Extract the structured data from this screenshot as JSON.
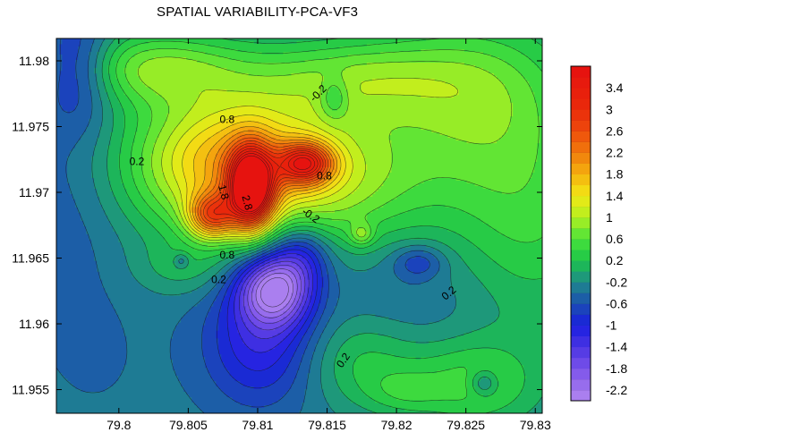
{
  "chart_data": {
    "type": "heatmap",
    "subtype": "filled-contour",
    "title": "SPATIAL VARIABILITY-PCA-VF3",
    "xlabel": "",
    "ylabel": "",
    "xlim": [
      79.7955,
      79.8305
    ],
    "ylim": [
      11.9532,
      11.9817
    ],
    "x_ticks": [
      79.8,
      79.805,
      79.81,
      79.815,
      79.82,
      79.825,
      79.83
    ],
    "x_tick_labels": [
      "79.8",
      "79.805",
      "79.81",
      "79.815",
      "79.82",
      "79.825",
      "79.83"
    ],
    "y_ticks": [
      11.955,
      11.96,
      11.965,
      11.97,
      11.975,
      11.98
    ],
    "y_tick_labels": [
      "11.955",
      "11.96",
      "11.965",
      "11.97",
      "11.975",
      "11.98"
    ],
    "colorbar": {
      "levels": [
        -2.4,
        -2.2,
        -2.0,
        -1.8,
        -1.6,
        -1.4,
        -1.2,
        -1.0,
        -0.8,
        -0.6,
        -0.4,
        -0.2,
        0,
        0.2,
        0.4,
        0.6,
        0.8,
        1.0,
        1.2,
        1.4,
        1.6,
        1.8,
        2.0,
        2.2,
        2.4,
        2.6,
        2.8,
        3.0,
        3.2,
        3.4,
        3.6,
        3.8
      ],
      "tick_values": [
        3.4,
        3,
        2.6,
        2.2,
        1.8,
        1.4,
        1,
        0.6,
        0.2,
        -0.2,
        -0.6,
        -1,
        -1.4,
        -1.8,
        -2.2
      ],
      "tick_labels": [
        "3.4",
        "3",
        "2.6",
        "2.2",
        "1.8",
        "1.4",
        "1",
        "0.6",
        "0.2",
        "-0.2",
        "-0.6",
        "-1",
        "-1.4",
        "-1.8",
        "-2.2"
      ],
      "colormap": [
        {
          "v": -2.4,
          "c": "#b488f0"
        },
        {
          "v": -1.8,
          "c": "#7a52ea"
        },
        {
          "v": -1.4,
          "c": "#4a35e2"
        },
        {
          "v": -1.0,
          "c": "#1a1ee0"
        },
        {
          "v": -0.6,
          "c": "#1b4fb0"
        },
        {
          "v": -0.2,
          "c": "#1f8a8a"
        },
        {
          "v": 0.2,
          "c": "#1cc44a"
        },
        {
          "v": 0.6,
          "c": "#48e23a"
        },
        {
          "v": 1.0,
          "c": "#b2f020"
        },
        {
          "v": 1.4,
          "c": "#f2e815"
        },
        {
          "v": 1.8,
          "c": "#f5b20f"
        },
        {
          "v": 2.2,
          "c": "#f07a0c"
        },
        {
          "v": 2.6,
          "c": "#ee4c0c"
        },
        {
          "v": 3.0,
          "c": "#ea2a0a"
        },
        {
          "v": 3.8,
          "c": "#e51010"
        }
      ]
    },
    "field": {
      "baseline": -0.3,
      "features": [
        {
          "x": 79.8095,
          "y": 11.9703,
          "amp": 3.6,
          "sx": 0.0011,
          "sy": 0.0021
        },
        {
          "x": 79.8067,
          "y": 11.9682,
          "amp": 1.9,
          "sx": 0.0012,
          "sy": 0.0012
        },
        {
          "x": 79.8134,
          "y": 11.9722,
          "amp": 2.2,
          "sx": 0.0014,
          "sy": 0.0011
        },
        {
          "x": 79.8075,
          "y": 11.9722,
          "amp": 1.4,
          "sx": 0.0045,
          "sy": 0.0035
        },
        {
          "x": 79.8115,
          "y": 11.9725,
          "amp": 0.8,
          "sx": 0.0075,
          "sy": 0.0045
        },
        {
          "x": 79.8155,
          "y": 11.9705,
          "amp": 0.6,
          "sx": 0.005,
          "sy": 0.0035
        },
        {
          "x": 79.8112,
          "y": 11.9627,
          "amp": -1.95,
          "sx": 0.0018,
          "sy": 0.0019
        },
        {
          "x": 79.8102,
          "y": 11.9588,
          "amp": -0.9,
          "sx": 0.0028,
          "sy": 0.0035
        },
        {
          "x": 79.8132,
          "y": 11.9655,
          "amp": -0.8,
          "sx": 0.0015,
          "sy": 0.0018
        },
        {
          "x": 79.8025,
          "y": 11.9795,
          "amp": 1.0,
          "sx": 0.0045,
          "sy": 0.002
        },
        {
          "x": 79.817,
          "y": 11.9788,
          "amp": 0.8,
          "sx": 0.0055,
          "sy": 0.0022
        },
        {
          "x": 79.826,
          "y": 11.9775,
          "amp": 0.85,
          "sx": 0.005,
          "sy": 0.0045
        },
        {
          "x": 79.8155,
          "y": 11.9772,
          "amp": -0.55,
          "sx": 0.0007,
          "sy": 0.0011
        },
        {
          "x": 79.8216,
          "y": 11.9647,
          "amp": -0.55,
          "sx": 0.0013,
          "sy": 0.0009
        },
        {
          "x": 79.8215,
          "y": 11.962,
          "amp": -0.2,
          "sx": 0.0045,
          "sy": 0.0035
        },
        {
          "x": 79.8255,
          "y": 11.9555,
          "amp": 0.75,
          "sx": 0.0035,
          "sy": 0.0025
        },
        {
          "x": 79.8263,
          "y": 11.9555,
          "amp": -0.6,
          "sx": 0.0007,
          "sy": 0.0007
        },
        {
          "x": 79.8205,
          "y": 11.9548,
          "amp": 0.35,
          "sx": 0.002,
          "sy": 0.0012
        },
        {
          "x": 79.8175,
          "y": 11.9572,
          "amp": 0.55,
          "sx": 0.003,
          "sy": 0.0025
        },
        {
          "x": 79.797,
          "y": 11.9795,
          "amp": -0.75,
          "sx": 0.0018,
          "sy": 0.003
        },
        {
          "x": 79.7962,
          "y": 11.9695,
          "amp": -0.25,
          "sx": 0.003,
          "sy": 0.006
        },
        {
          "x": 79.7985,
          "y": 11.957,
          "amp": -0.1,
          "sx": 0.004,
          "sy": 0.005
        },
        {
          "x": 79.8045,
          "y": 11.9642,
          "amp": 0.3,
          "sx": 0.0025,
          "sy": 0.0015
        },
        {
          "x": 79.8295,
          "y": 11.968,
          "amp": 0.7,
          "sx": 0.0045,
          "sy": 0.006
        },
        {
          "x": 79.8045,
          "y": 11.9648,
          "amp": -0.45,
          "sx": 0.0004,
          "sy": 0.0004
        },
        {
          "x": 79.8175,
          "y": 11.9668,
          "amp": 0.6,
          "sx": 0.0006,
          "sy": 0.0006
        }
      ]
    },
    "contour_labels": [
      {
        "text": "0.8",
        "x": 79.8078,
        "y": 11.9755
      },
      {
        "text": "0.2",
        "x": 79.8013,
        "y": 11.9723
      },
      {
        "text": "-0.2",
        "x": 79.8144,
        "y": 11.9775,
        "rotate": -45
      },
      {
        "text": "0.8",
        "x": 79.8148,
        "y": 11.9712
      },
      {
        "text": "1.8",
        "x": 79.8075,
        "y": 11.97,
        "rotate": 75
      },
      {
        "text": "2.8",
        "x": 79.8092,
        "y": 11.9692,
        "rotate": 75
      },
      {
        "text": "-0.2",
        "x": 79.8138,
        "y": 11.9682,
        "rotate": 35
      },
      {
        "text": "0.8",
        "x": 79.8078,
        "y": 11.9652
      },
      {
        "text": "0.2",
        "x": 79.8072,
        "y": 11.9633
      },
      {
        "text": "0.2",
        "x": 79.8238,
        "y": 11.9623,
        "rotate": -40
      },
      {
        "text": "0.2",
        "x": 79.8162,
        "y": 11.9572,
        "rotate": -55
      }
    ]
  }
}
